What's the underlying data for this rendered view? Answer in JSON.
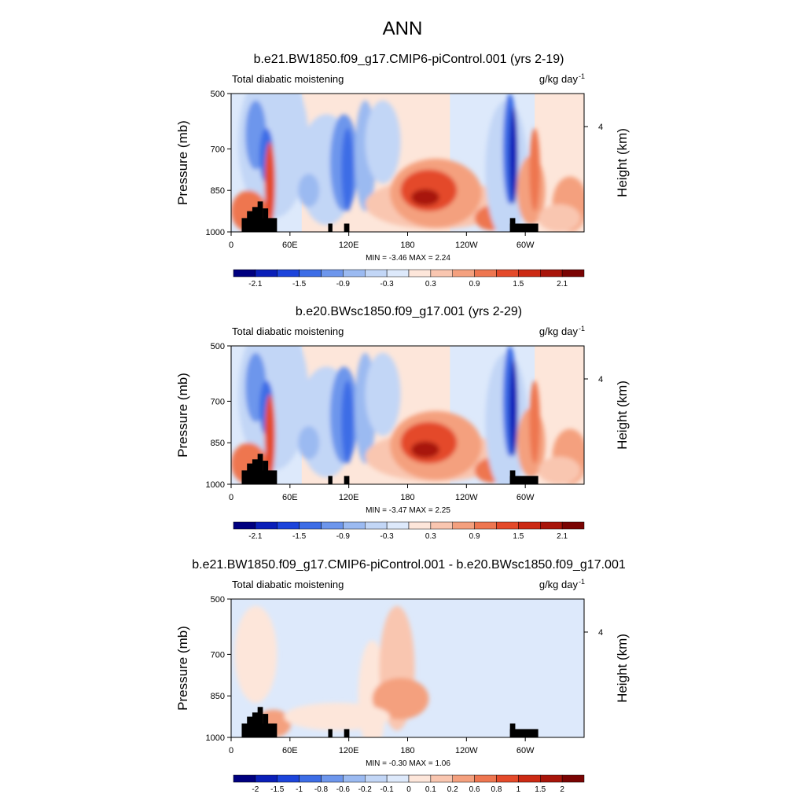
{
  "figure": {
    "title": "ANN"
  },
  "chart_data": [
    {
      "type": "heatmap",
      "title": "b.e21.BW1850.f09_g17.CMIP6-piControl.001 (yrs 2-19)",
      "left_label": "Total diabatic moistening",
      "right_label": "g/kg day",
      "right_label_sup": "-1",
      "ylabel": "Pressure (mb)",
      "ylabel_right": "Height (km)",
      "x_ticks": [
        "0",
        "60E",
        "120E",
        "180",
        "120W",
        "60W"
      ],
      "y_ticks": [
        "500",
        "700",
        "850",
        "1000"
      ],
      "y_right_ticks": [
        "4"
      ],
      "stats": "MIN =  -3.46  MAX =   2.24",
      "colorbar_labels": [
        "-2.1",
        "-1.5",
        "-0.9",
        "-0.3",
        "0.3",
        "0.9",
        "1.5",
        "2.1"
      ],
      "colorbar_colors": [
        "#00007f",
        "#0a1fb8",
        "#1c44db",
        "#3d6de6",
        "#6d96ec",
        "#9bbaf1",
        "#c2d6f6",
        "#dde9fb",
        "#fde6da",
        "#f9c6b0",
        "#f4a07e",
        "#ee7650",
        "#e44a2a",
        "#cc2a14",
        "#a8150a",
        "#7a0403"
      ]
    },
    {
      "type": "heatmap",
      "title": "b.e20.BWsc1850.f09_g17.001 (yrs 2-29)",
      "left_label": "Total diabatic moistening",
      "right_label": "g/kg day",
      "right_label_sup": "-1",
      "ylabel": "Pressure (mb)",
      "ylabel_right": "Height (km)",
      "x_ticks": [
        "0",
        "60E",
        "120E",
        "180",
        "120W",
        "60W"
      ],
      "y_ticks": [
        "500",
        "700",
        "850",
        "1000"
      ],
      "y_right_ticks": [
        "4"
      ],
      "stats": "MIN =  -3.47  MAX =   2.25",
      "colorbar_labels": [
        "-2.1",
        "-1.5",
        "-0.9",
        "-0.3",
        "0.3",
        "0.9",
        "1.5",
        "2.1"
      ],
      "colorbar_colors": [
        "#00007f",
        "#0a1fb8",
        "#1c44db",
        "#3d6de6",
        "#6d96ec",
        "#9bbaf1",
        "#c2d6f6",
        "#dde9fb",
        "#fde6da",
        "#f9c6b0",
        "#f4a07e",
        "#ee7650",
        "#e44a2a",
        "#cc2a14",
        "#a8150a",
        "#7a0403"
      ]
    },
    {
      "type": "heatmap",
      "title": "b.e21.BW1850.f09_g17.CMIP6-piControl.001 - b.e20.BWsc1850.f09_g17.001",
      "left_label": "Total diabatic moistening",
      "right_label": "g/kg day",
      "right_label_sup": "-1",
      "ylabel": "Pressure (mb)",
      "ylabel_right": "Height (km)",
      "x_ticks": [
        "0",
        "60E",
        "120E",
        "180",
        "120W",
        "60W"
      ],
      "y_ticks": [
        "500",
        "700",
        "850",
        "1000"
      ],
      "y_right_ticks": [
        "4"
      ],
      "stats": "MIN =  -0.30  MAX =   1.06",
      "colorbar_labels": [
        "-2",
        "-1.5",
        "-1",
        "-0.8",
        "-0.6",
        "-0.2",
        "-0.1",
        "0",
        "0.1",
        "0.2",
        "0.6",
        "0.8",
        "1",
        "1.5",
        "2"
      ],
      "colorbar_colors": [
        "#00007f",
        "#0a1fb8",
        "#1c44db",
        "#3d6de6",
        "#6d96ec",
        "#9bbaf1",
        "#c2d6f6",
        "#dde9fb",
        "#fde6da",
        "#f9c6b0",
        "#f4a07e",
        "#ee7650",
        "#e44a2a",
        "#cc2a14",
        "#a8150a",
        "#7a0403"
      ]
    }
  ]
}
